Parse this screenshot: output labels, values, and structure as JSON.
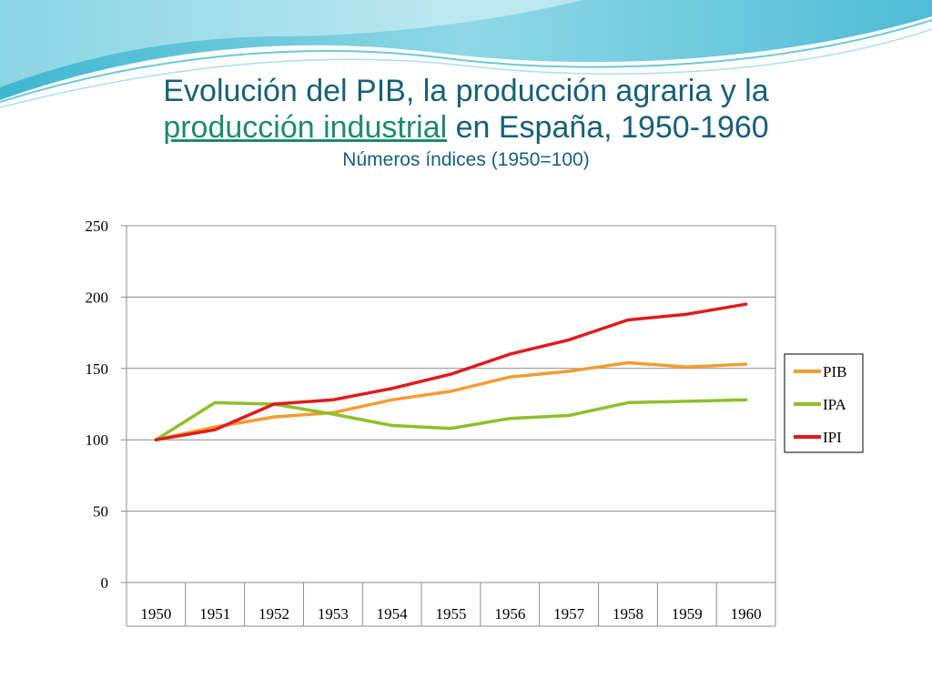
{
  "slide": {
    "title_part1": "Evolución del PIB, la producción agraria y la",
    "title_link": "producción industrial",
    "title_part2": " en España, 1950-1960",
    "subtitle": "Números índices (1950=100)"
  },
  "colors": {
    "title": "#17607a",
    "link": "#1f8a6c",
    "grid": "#8c8c8c"
  },
  "chart_data": {
    "type": "line",
    "title": "",
    "xlabel": "",
    "ylabel": "",
    "categories": [
      "1950",
      "1951",
      "1952",
      "1953",
      "1954",
      "1955",
      "1956",
      "1957",
      "1958",
      "1959",
      "1960"
    ],
    "ylim": [
      0,
      250
    ],
    "yticks": [
      0,
      50,
      100,
      150,
      200,
      250
    ],
    "grid": true,
    "legend_position": "right",
    "series": [
      {
        "name": "PIB",
        "color": "#f39c31",
        "values": [
          100,
          109,
          116,
          119,
          128,
          134,
          144,
          148,
          154,
          151,
          153
        ]
      },
      {
        "name": "IPA",
        "color": "#8dc02c",
        "values": [
          100,
          126,
          125,
          118,
          110,
          108,
          115,
          117,
          126,
          127,
          128
        ]
      },
      {
        "name": "IPI",
        "color": "#e01b1b",
        "values": [
          100,
          107,
          125,
          128,
          136,
          146,
          160,
          170,
          184,
          188,
          195
        ]
      }
    ]
  }
}
